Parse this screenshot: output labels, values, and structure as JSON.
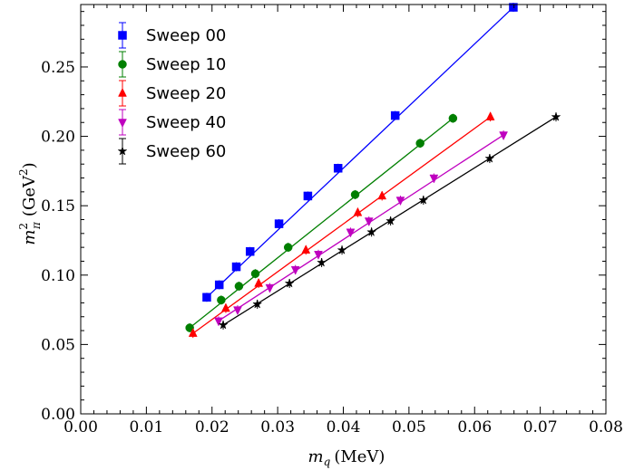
{
  "chart_data": {
    "type": "scatter",
    "xlabel": {
      "base": "m",
      "sub": "q",
      "unit": "(MeV)"
    },
    "ylabel": {
      "base": "m",
      "sup": "2",
      "sub": "π",
      "unit_open": "(GeV",
      "unit_sup": "2",
      "unit_close": ")"
    },
    "xlim": [
      0.0,
      0.08
    ],
    "ylim": [
      0.0,
      0.295
    ],
    "xticks": [
      0.0,
      0.01,
      0.02,
      0.03,
      0.04,
      0.05,
      0.06,
      0.07,
      0.08
    ],
    "xticklabels": [
      "0.00",
      "0.01",
      "0.02",
      "0.03",
      "0.04",
      "0.05",
      "0.06",
      "0.07",
      "0.08"
    ],
    "yticks": [
      0.0,
      0.05,
      0.1,
      0.15,
      0.2,
      0.25
    ],
    "yticklabels": [
      "0.00",
      "0.05",
      "0.10",
      "0.15",
      "0.20",
      "0.25"
    ],
    "grid": false,
    "legend_position": "top-left",
    "series": [
      {
        "name": "Sweep 00",
        "color": "#0000ff",
        "marker": "square",
        "x": [
          0.0192,
          0.0211,
          0.0237,
          0.0258,
          0.0302,
          0.0346,
          0.0392,
          0.0479,
          0.0659
        ],
        "y": [
          0.084,
          0.093,
          0.106,
          0.117,
          0.137,
          0.157,
          0.177,
          0.215,
          0.293
        ],
        "fit": [
          [
            0.0192,
            0.084
          ],
          [
            0.0659,
            0.293
          ]
        ]
      },
      {
        "name": "Sweep 10",
        "color": "#007f00",
        "marker": "circle",
        "x": [
          0.0166,
          0.0214,
          0.0241,
          0.0266,
          0.0316,
          0.0418,
          0.0517,
          0.0567
        ],
        "y": [
          0.062,
          0.082,
          0.092,
          0.101,
          0.12,
          0.158,
          0.195,
          0.213
        ],
        "fit": [
          [
            0.0166,
            0.062
          ],
          [
            0.0567,
            0.213
          ]
        ]
      },
      {
        "name": "Sweep 20",
        "color": "#ff0000",
        "marker": "triangle-up",
        "x": [
          0.0171,
          0.0221,
          0.0271,
          0.0343,
          0.0422,
          0.0459,
          0.0624
        ],
        "y": [
          0.058,
          0.076,
          0.094,
          0.118,
          0.145,
          0.157,
          0.214
        ],
        "fit": [
          [
            0.0171,
            0.058
          ],
          [
            0.0624,
            0.214
          ]
        ]
      },
      {
        "name": "Sweep 40",
        "color": "#bf00bf",
        "marker": "triangle-down",
        "x": [
          0.021,
          0.0239,
          0.0288,
          0.0327,
          0.0362,
          0.0411,
          0.0439,
          0.0487,
          0.0538,
          0.0644
        ],
        "y": [
          0.067,
          0.075,
          0.091,
          0.104,
          0.115,
          0.131,
          0.139,
          0.154,
          0.17,
          0.201
        ],
        "fit": [
          [
            0.021,
            0.067
          ],
          [
            0.0644,
            0.201
          ]
        ]
      },
      {
        "name": "Sweep 60",
        "color": "#000000",
        "marker": "star",
        "x": [
          0.0217,
          0.0269,
          0.0318,
          0.0367,
          0.0398,
          0.0443,
          0.0472,
          0.0522,
          0.0623,
          0.0724
        ],
        "y": [
          0.064,
          0.079,
          0.094,
          0.109,
          0.118,
          0.131,
          0.139,
          0.154,
          0.184,
          0.214
        ],
        "fit": [
          [
            0.0217,
            0.064
          ],
          [
            0.0724,
            0.214
          ]
        ]
      }
    ]
  }
}
